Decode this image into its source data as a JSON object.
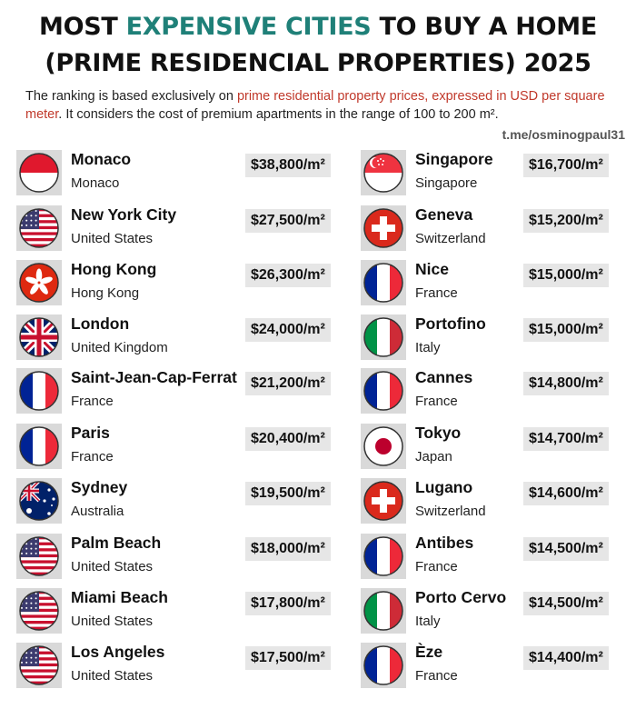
{
  "header": {
    "title_line1_pre": "MOST ",
    "title_line1_highlight": "EXPENSIVE CITIES",
    "title_line1_post": " TO BUY A HOME",
    "title_line2": "(PRIME RESIDENCIAL PROPERTIES) 2025",
    "subtitle_pre": "The ranking is based exclusively on ",
    "subtitle_highlight": "prime residential property prices, expressed in USD per square meter",
    "subtitle_post": ". It considers the cost of premium apartments in the range of 100 to 200 m².",
    "credit": "t.me/osminogpaul31"
  },
  "colors": {
    "teal": "#1f8078",
    "red": "#c0392b"
  },
  "left_column": [
    {
      "city": "Monaco",
      "country": "Monaco",
      "price": "$38,800/m²",
      "flag": "monaco-flag-icon"
    },
    {
      "city": "New York City",
      "country": "United States",
      "price": "$27,500/m²",
      "flag": "usa-flag-icon"
    },
    {
      "city": "Hong Kong",
      "country": "Hong Kong",
      "price": "$26,300/m²",
      "flag": "hong-kong-flag-icon"
    },
    {
      "city": "London",
      "country": "United Kingdom",
      "price": "$24,000/m²",
      "flag": "uk-flag-icon"
    },
    {
      "city": "Saint-Jean-Cap-Ferrat",
      "country": "France",
      "price": "$21,200/m²",
      "flag": "france-flag-icon"
    },
    {
      "city": "Paris",
      "country": "France",
      "price": "$20,400/m²",
      "flag": "france-flag-icon"
    },
    {
      "city": "Sydney",
      "country": "Australia",
      "price": "$19,500/m²",
      "flag": "australia-flag-icon"
    },
    {
      "city": "Palm Beach",
      "country": "United States",
      "price": "$18,000/m²",
      "flag": "usa-flag-icon"
    },
    {
      "city": "Miami Beach",
      "country": "United States",
      "price": "$17,800/m²",
      "flag": "usa-flag-icon"
    },
    {
      "city": "Los Angeles",
      "country": "United States",
      "price": "$17,500/m²",
      "flag": "usa-flag-icon"
    }
  ],
  "right_column": [
    {
      "city": "Singapore",
      "country": "Singapore",
      "price": "$16,700/m²",
      "flag": "singapore-flag-icon"
    },
    {
      "city": "Geneva",
      "country": "Switzerland",
      "price": "$15,200/m²",
      "flag": "switzerland-flag-icon"
    },
    {
      "city": "Nice",
      "country": "France",
      "price": "$15,000/m²",
      "flag": "france-flag-icon"
    },
    {
      "city": "Portofino",
      "country": "Italy",
      "price": "$15,000/m²",
      "flag": "italy-flag-icon"
    },
    {
      "city": "Cannes",
      "country": "France",
      "price": "$14,800/m²",
      "flag": "france-flag-icon"
    },
    {
      "city": "Tokyo",
      "country": "Japan",
      "price": "$14,700/m²",
      "flag": "japan-flag-icon"
    },
    {
      "city": "Lugano",
      "country": "Switzerland",
      "price": "$14,600/m²",
      "flag": "switzerland-flag-icon"
    },
    {
      "city": "Antibes",
      "country": "France",
      "price": "$14,500/m²",
      "flag": "france-flag-icon"
    },
    {
      "city": "Porto Cervo",
      "country": "Italy",
      "price": "$14,500/m²",
      "flag": "italy-flag-icon"
    },
    {
      "city": "Èze",
      "country": "France",
      "price": "$14,400/m²",
      "flag": "france-flag-icon"
    }
  ]
}
